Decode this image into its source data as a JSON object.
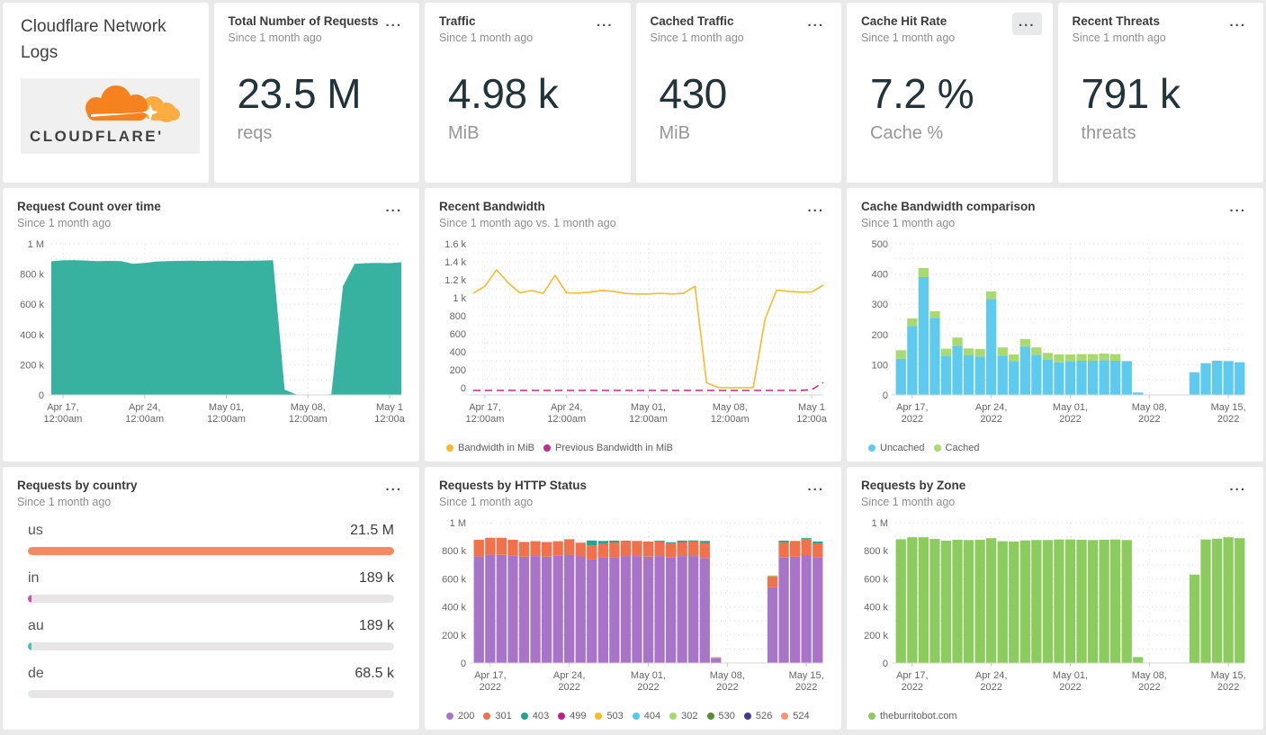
{
  "ui": {
    "menu_glyph": "..."
  },
  "panels": {
    "logo": {
      "title": "Cloudflare Network Logs",
      "brand": "CLOUDFLARE'"
    },
    "total_requests": {
      "title": "Total Number of Requests",
      "subtitle": "Since 1 month ago",
      "value": "23.5 M",
      "unit": "reqs"
    },
    "traffic": {
      "title": "Traffic",
      "subtitle": "Since 1 month ago",
      "value": "4.98 k",
      "unit": "MiB"
    },
    "cached_traffic": {
      "title": "Cached Traffic",
      "subtitle": "Since 1 month ago",
      "value": "430",
      "unit": "MiB"
    },
    "cache_hit_rate": {
      "title": "Cache Hit Rate",
      "subtitle": "Since 1 month ago",
      "value": "7.2 %",
      "unit": "Cache %"
    },
    "recent_threats": {
      "title": "Recent Threats",
      "subtitle": "Since 1 month ago",
      "value": "791 k",
      "unit": "threats"
    }
  },
  "chart_data": [
    {
      "id": "request_count",
      "type": "area",
      "title": "Request Count over time",
      "subtitle": "Since 1 month ago",
      "color": "#38b2a0",
      "value_unit": "thousands of requests",
      "ylim": [
        0,
        1000
      ],
      "grid_step": 100,
      "yticks": [
        [
          0,
          "0"
        ],
        [
          200,
          "200 k"
        ],
        [
          400,
          "400 k"
        ],
        [
          600,
          "600 k"
        ],
        [
          800,
          "800 k"
        ],
        [
          1000,
          "1 M"
        ]
      ],
      "xticks": [
        [
          1,
          "Apr 17,",
          "12:00am"
        ],
        [
          8,
          "Apr 24,",
          "12:00am"
        ],
        [
          15,
          "May 01,",
          "12:00am"
        ],
        [
          22,
          "May 08,",
          "12:00am"
        ],
        [
          29,
          "May 1",
          "12:00a"
        ]
      ],
      "values": [
        884,
        891,
        892,
        889,
        886,
        887,
        886,
        868,
        874,
        883,
        886,
        887,
        888,
        887,
        888,
        888,
        887,
        888,
        889,
        891,
        35,
        3,
        2,
        2,
        5,
        720,
        868,
        872,
        874,
        872,
        878
      ]
    },
    {
      "id": "recent_bandwidth",
      "type": "line",
      "title": "Recent Bandwidth",
      "subtitle": "Since 1 month ago vs. 1 month ago",
      "value_unit": "MiB",
      "ylim": [
        -80,
        1600
      ],
      "grid_step": 100,
      "yticks": [
        [
          0,
          "0"
        ],
        [
          200,
          "200"
        ],
        [
          400,
          "400"
        ],
        [
          600,
          "600"
        ],
        [
          800,
          "800"
        ],
        [
          1000,
          "1 k"
        ],
        [
          1200,
          "1.2 k"
        ],
        [
          1400,
          "1.4 k"
        ],
        [
          1600,
          "1.6 k"
        ]
      ],
      "xticks": [
        [
          1,
          "Apr 17,",
          "12:00am"
        ],
        [
          8,
          "Apr 24,",
          "12:00am"
        ],
        [
          15,
          "May 01,",
          "12:00am"
        ],
        [
          22,
          "May 08,",
          "12:00am"
        ],
        [
          29,
          "May 1",
          "12:00a"
        ]
      ],
      "series": [
        {
          "name": "Bandwidth in MiB",
          "color": "#f5bb2b",
          "values": [
            1050,
            1130,
            1310,
            1165,
            1055,
            1080,
            1050,
            1250,
            1055,
            1052,
            1062,
            1082,
            1072,
            1048,
            1042,
            1042,
            1050,
            1042,
            1048,
            1128,
            55,
            2,
            0,
            0,
            2,
            760,
            1085,
            1072,
            1062,
            1065,
            1140
          ]
        },
        {
          "name": "Previous Bandwidth in MiB",
          "color": "#c02d8c",
          "dash": "8 5",
          "values": [
            -30,
            -30,
            -30,
            -30,
            -30,
            -30,
            -30,
            -30,
            -30,
            -30,
            -30,
            -30,
            -30,
            -30,
            -30,
            -30,
            -30,
            -30,
            -30,
            -30,
            -30,
            -30,
            -30,
            -30,
            -30,
            -30,
            -30,
            -30,
            -30,
            -22,
            58
          ]
        }
      ],
      "legend": [
        {
          "label": "Bandwidth in MiB",
          "color": "#f5bb2b"
        },
        {
          "label": "Previous Bandwidth in MiB",
          "color": "#c02d8c"
        }
      ]
    },
    {
      "id": "cache_bandwidth",
      "type": "stacked_bar",
      "title": "Cache Bandwidth comparison",
      "subtitle": "Since 1 month ago",
      "value_unit": "MiB",
      "ylim": [
        0,
        500
      ],
      "grid_step": 50,
      "yticks": [
        [
          0,
          "0"
        ],
        [
          100,
          "100"
        ],
        [
          200,
          "200"
        ],
        [
          300,
          "300"
        ],
        [
          400,
          "400"
        ],
        [
          500,
          "500"
        ]
      ],
      "xticks": [
        [
          1,
          "Apr 17,",
          "2022"
        ],
        [
          8,
          "Apr 24,",
          "2022"
        ],
        [
          15,
          "May 01,",
          "2022"
        ],
        [
          22,
          "May 08,",
          "2022"
        ],
        [
          29,
          "May 15,",
          "2022"
        ]
      ],
      "series": [
        {
          "name": "Uncached",
          "color": "#5dcaee",
          "values": [
            120,
            228,
            390,
            255,
            128,
            162,
            132,
            127,
            318,
            130,
            112,
            160,
            133,
            117,
            108,
            112,
            113,
            113,
            115,
            113,
            112,
            8,
            0,
            0,
            0,
            0,
            75,
            105,
            113,
            112,
            108
          ]
        },
        {
          "name": "Cached",
          "color": "#a8da70",
          "values": [
            28,
            25,
            30,
            22,
            25,
            28,
            22,
            25,
            25,
            27,
            22,
            25,
            24,
            22,
            26,
            22,
            22,
            22,
            22,
            22,
            0,
            0,
            0,
            0,
            0,
            0,
            0,
            0,
            0,
            0,
            0
          ]
        }
      ],
      "legend": [
        {
          "label": "Uncached",
          "color": "#5dcaee"
        },
        {
          "label": "Cached",
          "color": "#a8da70"
        }
      ]
    },
    {
      "id": "by_country",
      "type": "hbar",
      "title": "Requests by country",
      "subtitle": "Since 1 month ago",
      "rows": [
        {
          "label": "us",
          "value": "21.5 M",
          "pct": 100,
          "color": "#f6895f"
        },
        {
          "label": "in",
          "value": "189 k",
          "pct": 0.9,
          "color": "#d94f9e"
        },
        {
          "label": "au",
          "value": "189 k",
          "pct": 0.9,
          "color": "#45c4b1"
        },
        {
          "label": "de",
          "value": "68.5 k",
          "pct": 0.4,
          "color": "#d9efeb"
        }
      ]
    },
    {
      "id": "by_status",
      "type": "stacked_bar",
      "title": "Requests by HTTP Status",
      "subtitle": "Since 1 month ago",
      "value_unit": "thousands of requests",
      "ylim": [
        0,
        1000
      ],
      "grid_step": 100,
      "yticks": [
        [
          0,
          "0"
        ],
        [
          200,
          "200 k"
        ],
        [
          400,
          "400 k"
        ],
        [
          600,
          "600 k"
        ],
        [
          800,
          "800 k"
        ],
        [
          1000,
          "1 M"
        ]
      ],
      "xticks": [
        [
          1,
          "Apr 17,",
          "2022"
        ],
        [
          8,
          "Apr 24,",
          "2022"
        ],
        [
          15,
          "May 01,",
          "2022"
        ],
        [
          22,
          "May 08,",
          "2022"
        ],
        [
          29,
          "May 15,",
          "2022"
        ]
      ],
      "series": [
        {
          "name": "200",
          "color": "#a874c8",
          "values": [
            760,
            772,
            770,
            768,
            758,
            762,
            758,
            764,
            772,
            760,
            738,
            752,
            756,
            762,
            762,
            758,
            762,
            752,
            762,
            762,
            748,
            36,
            0,
            0,
            0,
            0,
            540,
            752,
            758,
            766,
            752
          ]
        },
        {
          "name": "301",
          "color": "#f0714b",
          "values": [
            118,
            120,
            122,
            110,
            105,
            106,
            104,
            104,
            110,
            98,
            100,
            98,
            104,
            110,
            108,
            108,
            104,
            100,
            100,
            104,
            108,
            0,
            0,
            0,
            0,
            0,
            76,
            108,
            112,
            118,
            100
          ]
        },
        {
          "name": "403",
          "color": "#24a392",
          "values": [
            0,
            0,
            0,
            0,
            0,
            0,
            0,
            0,
            0,
            0,
            35,
            20,
            12,
            0,
            0,
            0,
            6,
            8,
            10,
            8,
            14,
            0,
            0,
            0,
            0,
            0,
            0,
            12,
            0,
            6,
            14
          ]
        },
        {
          "name": "503",
          "color": "#c3ae67",
          "values": [
            0,
            0,
            0,
            0,
            0,
            0,
            0,
            0,
            0,
            0,
            0,
            0,
            0,
            0,
            0,
            0,
            0,
            0,
            0,
            0,
            0,
            6,
            0,
            0,
            0,
            0,
            8,
            0,
            0,
            0,
            0
          ]
        }
      ],
      "legend": [
        {
          "label": "200",
          "color": "#a874c8"
        },
        {
          "label": "301",
          "color": "#f0714b"
        },
        {
          "label": "403",
          "color": "#24a392"
        },
        {
          "label": "499",
          "color": "#c0208b"
        },
        {
          "label": "503",
          "color": "#f6bd27"
        },
        {
          "label": "404",
          "color": "#56c7ee"
        },
        {
          "label": "302",
          "color": "#a8da70"
        },
        {
          "label": "530",
          "color": "#568f2e"
        },
        {
          "label": "526",
          "color": "#4a3a8f"
        },
        {
          "label": "524",
          "color": "#f9966f"
        }
      ]
    },
    {
      "id": "by_zone",
      "type": "stacked_bar",
      "title": "Requests by Zone",
      "subtitle": "Since 1 month ago",
      "value_unit": "thousands of requests",
      "ylim": [
        0,
        1000
      ],
      "grid_step": 100,
      "yticks": [
        [
          0,
          "0"
        ],
        [
          200,
          "200 k"
        ],
        [
          400,
          "400 k"
        ],
        [
          600,
          "600 k"
        ],
        [
          800,
          "800 k"
        ],
        [
          1000,
          "1 M"
        ]
      ],
      "xticks": [
        [
          1,
          "Apr 17,",
          "2022"
        ],
        [
          8,
          "Apr 24,",
          "2022"
        ],
        [
          15,
          "May 01,",
          "2022"
        ],
        [
          22,
          "May 08,",
          "2022"
        ],
        [
          29,
          "May 15,",
          "2022"
        ]
      ],
      "series": [
        {
          "name": "theburritobot.com",
          "color": "#8ccb5e",
          "values": [
            882,
            896,
            896,
            884,
            872,
            878,
            876,
            878,
            890,
            868,
            866,
            874,
            876,
            876,
            880,
            880,
            878,
            876,
            878,
            880,
            876,
            42,
            0,
            0,
            0,
            0,
            630,
            880,
            886,
            896,
            890
          ]
        }
      ],
      "legend": [
        {
          "label": "theburritobot.com",
          "color": "#8ccb5e"
        }
      ]
    }
  ]
}
